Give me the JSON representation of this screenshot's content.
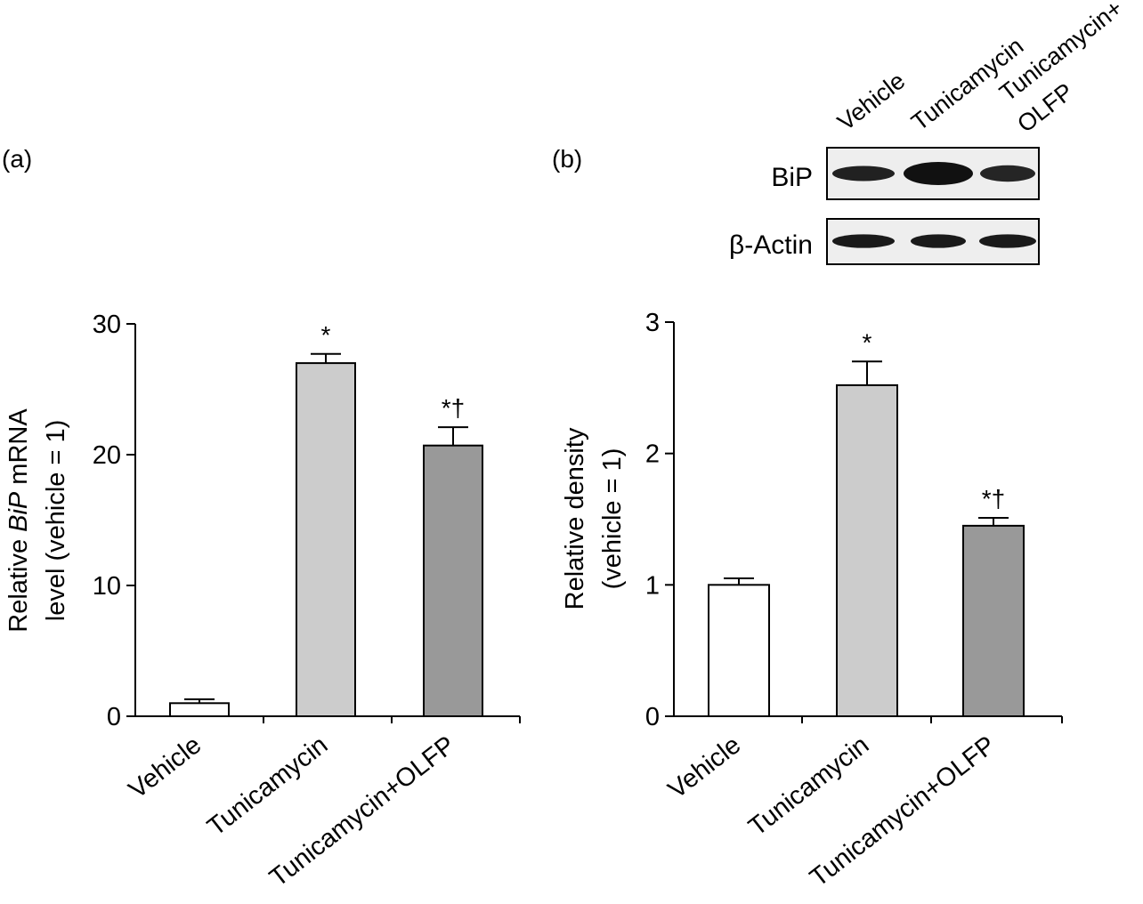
{
  "panels": {
    "a": {
      "label": "(a)"
    },
    "b": {
      "label": "(b)"
    }
  },
  "blot": {
    "lanes": [
      "Vehicle",
      "Tunicamycin",
      "Tunicamycin+",
      "OLFP"
    ],
    "rows": [
      {
        "name": "BiP",
        "intensity": [
          0.85,
          1.0,
          0.8
        ]
      },
      {
        "name": "β-Actin",
        "intensity": [
          0.9,
          0.9,
          0.9
        ]
      }
    ]
  },
  "chart_data": [
    {
      "type": "bar",
      "panel": "(a)",
      "categories": [
        "Vehicle",
        "Tunicamycin",
        "Tunicamycin+OLFP"
      ],
      "values": [
        1.0,
        27.0,
        20.7
      ],
      "errors": [
        0.3,
        0.7,
        1.4
      ],
      "significance": [
        "",
        "*",
        "*†"
      ],
      "fill_colors": [
        "#ffffff",
        "#cccccc",
        "#999999"
      ],
      "ylabel_parts": [
        "Relative ",
        "BiP",
        " mRNA"
      ],
      "ylabel_line2": "level (vehicle = 1)",
      "ylim": [
        0,
        30
      ],
      "yticks": [
        "0",
        "10",
        "20",
        "30"
      ],
      "ytick_values": [
        0,
        10,
        20,
        30
      ],
      "grid": false
    },
    {
      "type": "bar",
      "panel": "(b)",
      "categories": [
        "Vehicle",
        "Tunicamycin",
        "Tunicamycin+OLFP"
      ],
      "values": [
        1.0,
        2.52,
        1.45
      ],
      "errors": [
        0.05,
        0.18,
        0.06
      ],
      "significance": [
        "",
        "*",
        "*†"
      ],
      "fill_colors": [
        "#ffffff",
        "#cccccc",
        "#999999"
      ],
      "ylabel_line1": "Relative density",
      "ylabel_line2": "(vehicle = 1)",
      "ylim": [
        0,
        3
      ],
      "yticks": [
        "0",
        "1",
        "2",
        "3"
      ],
      "ytick_values": [
        0,
        1,
        2,
        3
      ],
      "grid": false
    }
  ]
}
